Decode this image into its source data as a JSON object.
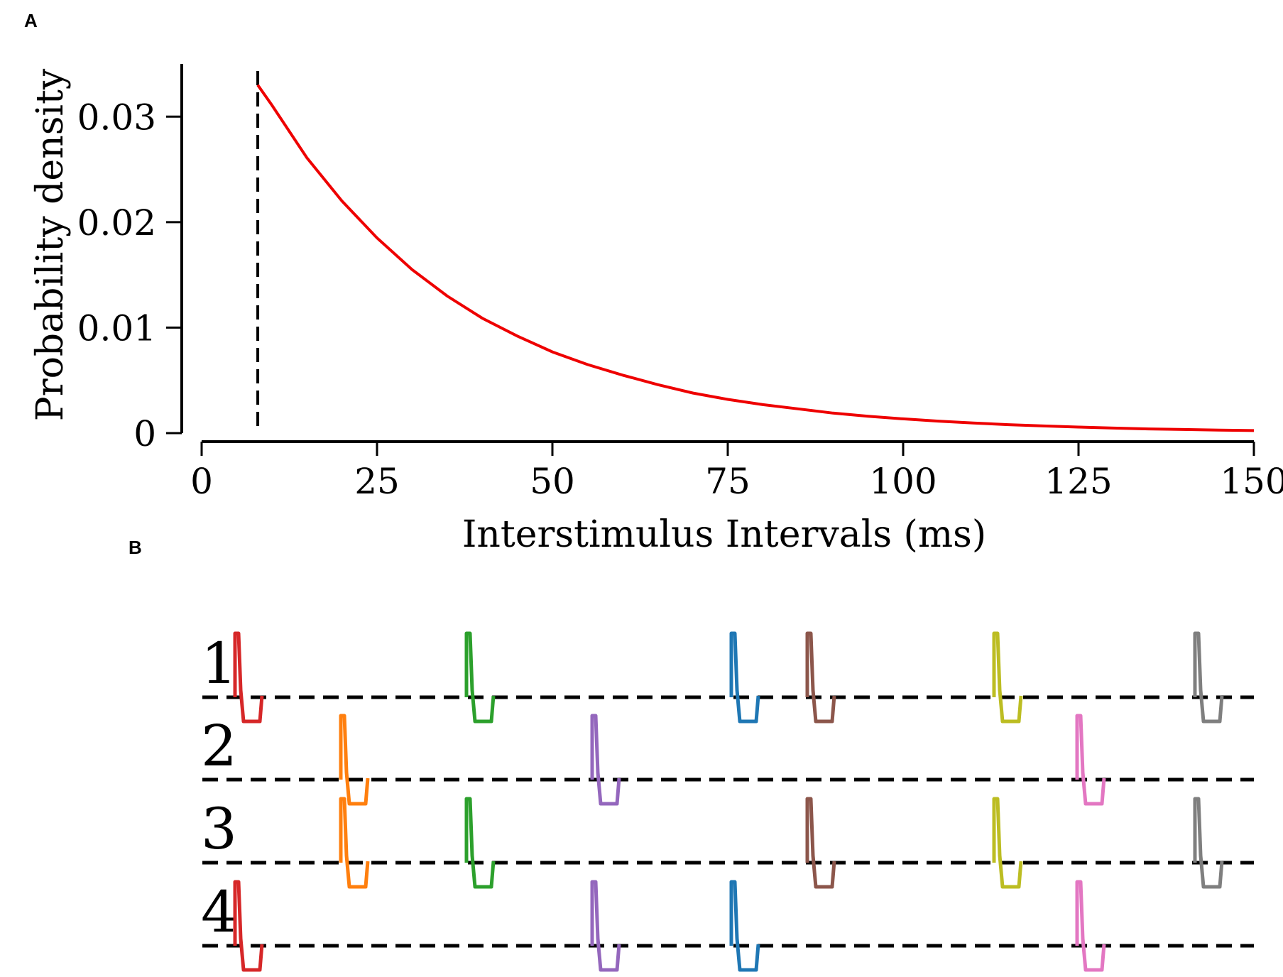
{
  "panels": {
    "a_label": "A",
    "b_label": "B"
  },
  "chart_data": [
    {
      "type": "line",
      "xlabel": "Interstimulus Intervals (ms)",
      "ylabel": "Probability density",
      "xlim": [
        0,
        150
      ],
      "ylim": [
        0,
        0.035
      ],
      "x_ticks": [
        0,
        25,
        50,
        75,
        100,
        125,
        150
      ],
      "x_tick_labels": [
        "0",
        "25",
        "50",
        "75",
        "100",
        "125",
        "150"
      ],
      "y_ticks": [
        0,
        0.01,
        0.02,
        0.03
      ],
      "y_tick_labels": [
        "0",
        "0.01",
        "0.02",
        "0.03"
      ],
      "grid": false,
      "series": [
        {
          "color": "#ee0000",
          "x": [
            8,
            10,
            15,
            20,
            25,
            30,
            35,
            40,
            45,
            50,
            55,
            60,
            65,
            70,
            75,
            80,
            85,
            90,
            95,
            100,
            105,
            110,
            115,
            120,
            125,
            130,
            135,
            140,
            145,
            150
          ],
          "y": [
            0.033,
            0.0311,
            0.0261,
            0.022,
            0.0185,
            0.0155,
            0.013,
            0.0109,
            0.0092,
            0.0077,
            0.0065,
            0.0055,
            0.0046,
            0.0038,
            0.0032,
            0.0027,
            0.0023,
            0.0019,
            0.0016,
            0.00135,
            0.00114,
            0.00096,
            0.0008,
            0.00068,
            0.00057,
            0.00048,
            0.0004,
            0.00034,
            0.00029,
            0.00024
          ]
        }
      ],
      "annotations": [
        {
          "type": "vertical-dashed-line",
          "x": 8,
          "color": "#000000"
        }
      ]
    },
    {
      "type": "line",
      "rows": [
        {
          "label": "1",
          "stimuli": [
            "red",
            "green",
            "blue",
            "brown",
            "olive",
            "gray"
          ]
        },
        {
          "label": "2",
          "stimuli": [
            "orange",
            "purple",
            "pink"
          ]
        },
        {
          "label": "3",
          "stimuli": [
            "orange",
            "green",
            "brown",
            "olive",
            "gray"
          ]
        },
        {
          "label": "4",
          "stimuli": [
            "red",
            "purple",
            "blue",
            "pink"
          ]
        }
      ],
      "stimulus_colors": {
        "red": "#d62728",
        "orange": "#ff7f0e",
        "green": "#2ca02c",
        "purple": "#9467bd",
        "blue": "#1f77b4",
        "brown": "#8c564b",
        "olive": "#bcbd22",
        "pink": "#e377c2",
        "gray": "#7f7f7f"
      },
      "stimulus_order": [
        "red",
        "orange",
        "green",
        "purple",
        "blue",
        "brown",
        "olive",
        "pink",
        "gray"
      ]
    }
  ]
}
